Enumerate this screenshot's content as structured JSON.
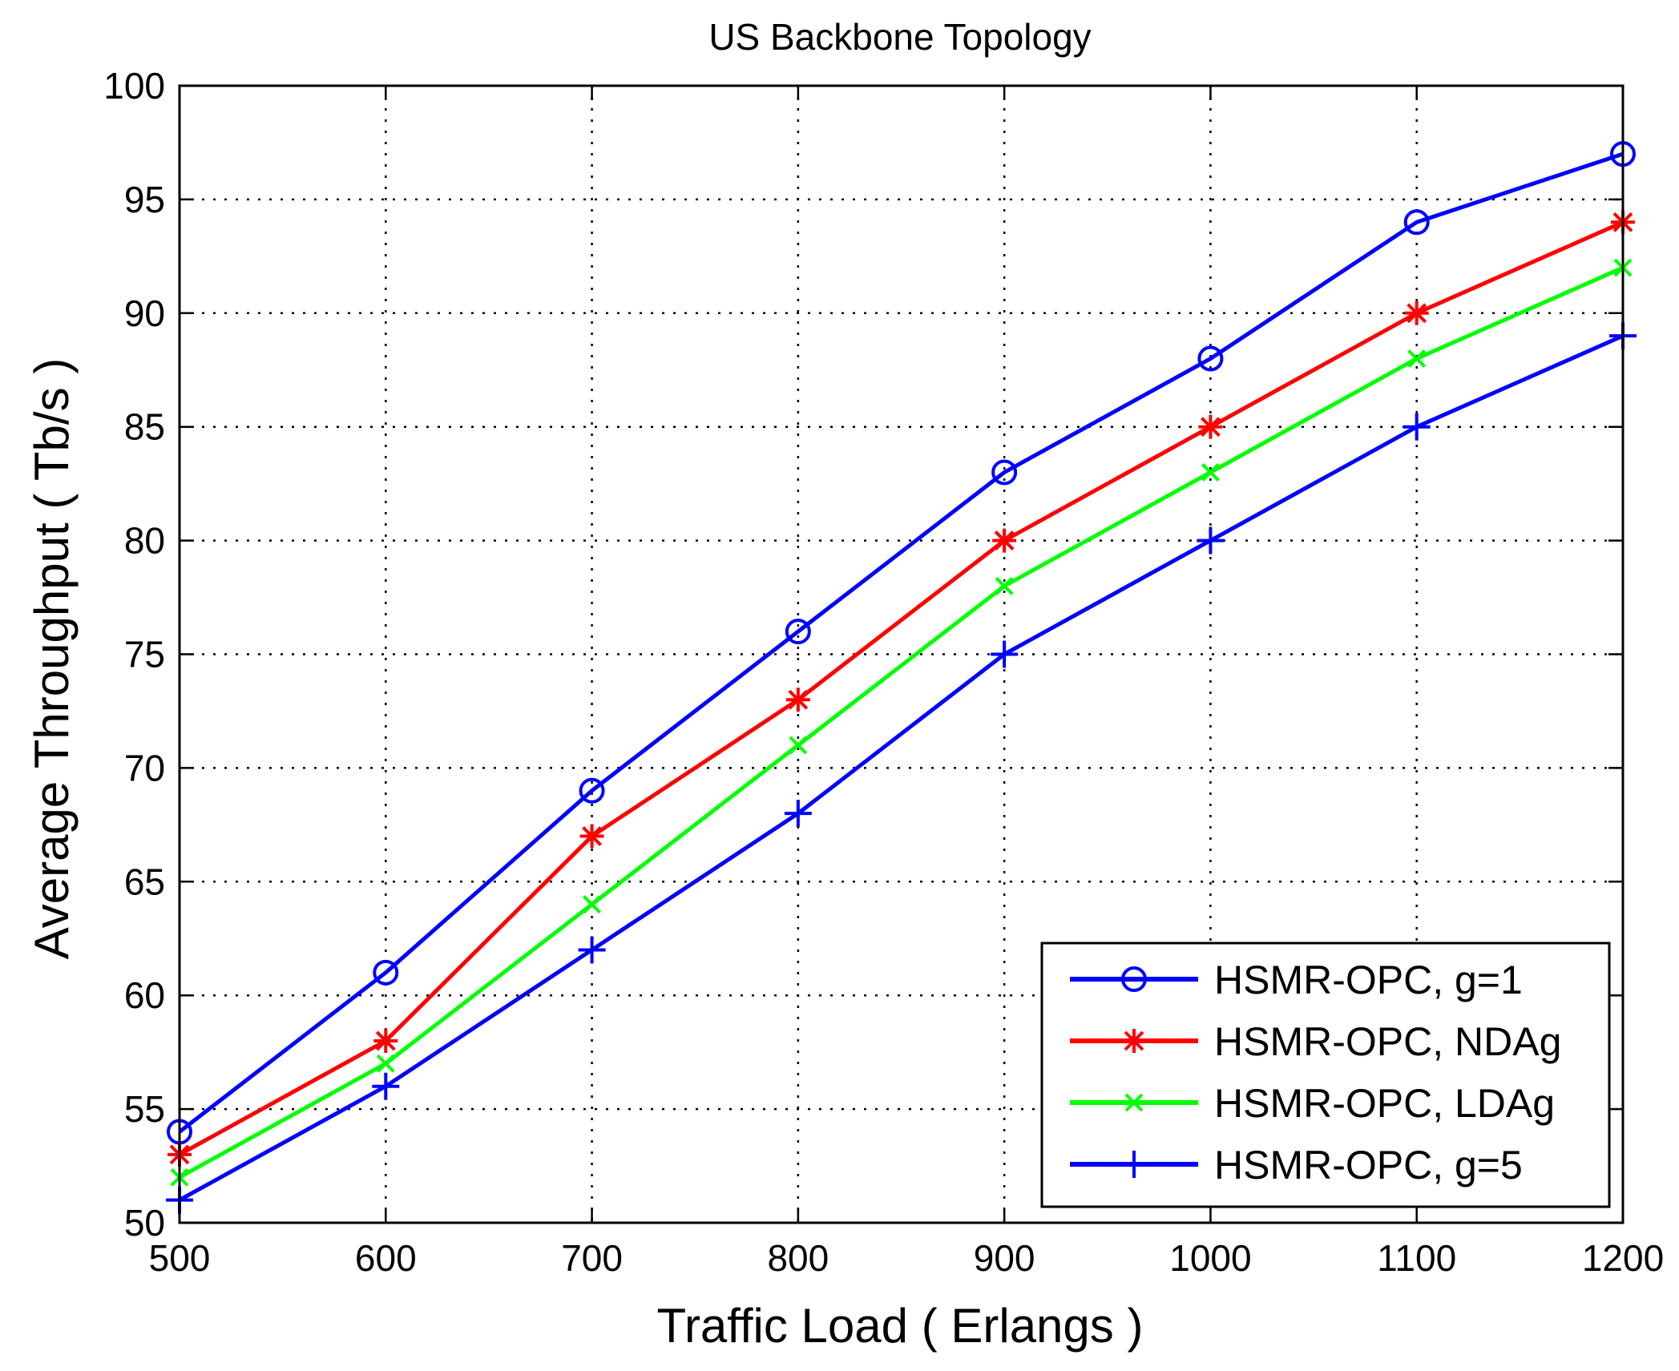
{
  "chart_data": {
    "type": "line",
    "title": "US Backbone Topology",
    "xlabel": "Traffic Load ( Erlangs )",
    "ylabel": "Average Throughput ( Tb/s )",
    "xlim": [
      500,
      1200
    ],
    "ylim": [
      50,
      100
    ],
    "xticks": [
      "500",
      "600",
      "700",
      "800",
      "900",
      "1000",
      "1100",
      "1200"
    ],
    "yticks": [
      "50",
      "55",
      "60",
      "65",
      "70",
      "75",
      "80",
      "85",
      "90",
      "95",
      "100"
    ],
    "grid": true,
    "legend_position": "bottom-right",
    "x": [
      500,
      600,
      700,
      800,
      900,
      1000,
      1100,
      1200
    ],
    "series": [
      {
        "name": "HSMR-OPC, g=1",
        "color": "#0000ff",
        "marker": "circle",
        "values": [
          54,
          61,
          69,
          76,
          83,
          88,
          94,
          97
        ]
      },
      {
        "name": "HSMR-OPC, NDAg",
        "color": "#ff0000",
        "marker": "asterisk",
        "values": [
          53,
          58,
          67,
          73,
          80,
          85,
          90,
          94
        ]
      },
      {
        "name": "HSMR-OPC, LDAg",
        "color": "#00ff00",
        "marker": "x",
        "values": [
          52,
          57,
          64,
          71,
          78,
          83,
          88,
          92
        ]
      },
      {
        "name": "HSMR-OPC, g=5",
        "color": "#0000ff",
        "marker": "plus",
        "values": [
          51,
          56,
          62,
          68,
          75,
          80,
          85,
          89
        ]
      }
    ]
  }
}
